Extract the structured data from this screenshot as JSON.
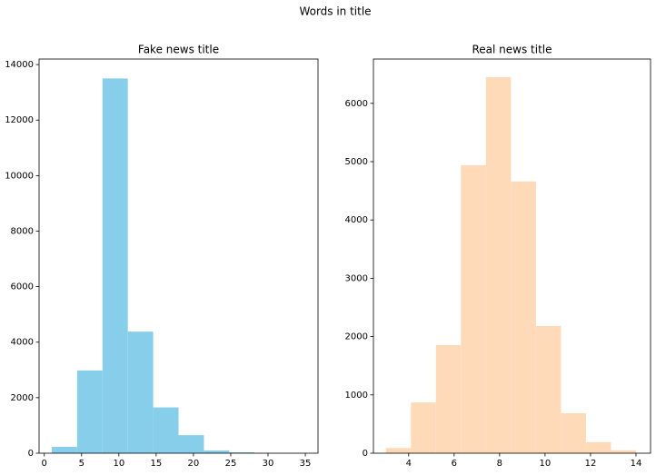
{
  "title": "Words in title",
  "chart_data": [
    {
      "type": "histogram",
      "title": "Fake news title",
      "color": "#87ceeb",
      "bins": [
        1,
        4.4,
        7.8,
        11.2,
        14.6,
        18,
        21.4,
        24.8,
        28.2,
        31.6,
        35
      ],
      "values": [
        230,
        2980,
        13500,
        4380,
        1650,
        650,
        100,
        30,
        5,
        2
      ],
      "xlim": [
        -0.7,
        36.7
      ],
      "ylim": [
        0,
        14200
      ],
      "xticks": [
        0,
        5,
        10,
        15,
        20,
        25,
        30,
        35
      ],
      "yticks": [
        0,
        2000,
        4000,
        6000,
        8000,
        10000,
        12000,
        14000
      ]
    },
    {
      "type": "histogram",
      "title": "Real news title",
      "color": "#ffdab9",
      "bins": [
        3,
        4.1,
        5.2,
        6.3,
        7.4,
        8.5,
        9.6,
        10.7,
        11.8,
        12.9,
        14
      ],
      "values": [
        90,
        870,
        1855,
        4940,
        6450,
        4660,
        2180,
        685,
        190,
        50
      ],
      "xlim": [
        2.45,
        14.64
      ],
      "ylim": [
        0,
        6760
      ],
      "xticks": [
        4,
        6,
        8,
        10,
        12,
        14
      ],
      "yticks": [
        0,
        1000,
        2000,
        3000,
        4000,
        5000,
        6000
      ]
    }
  ]
}
